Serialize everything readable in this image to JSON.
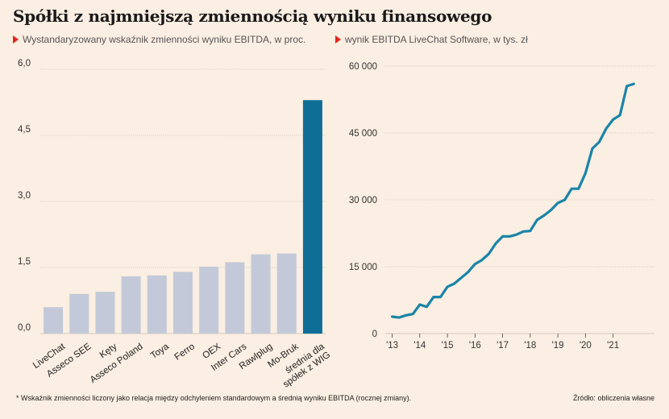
{
  "header": {
    "title": "Spółki z najmniejszą zmiennością wyniku finansowego"
  },
  "footnote": "* Wskaźnik zmienności liczony jako relacja między odchyleniem standardowym a średnią wyniku EBITDA (rocznej zmiany).",
  "source": "Źródło: obliczenia własne",
  "colors": {
    "background": "#fbeee2",
    "bar": "#c3c9d8",
    "highlight": "#0f6e96",
    "line": "#1a84a8",
    "marker": "#e2251b"
  },
  "chart_data": [
    {
      "type": "bar",
      "title": "Wystandaryzowany wskaźnik zmienności wyniku EBITDA, w proc.",
      "categories": [
        "LiveChat",
        "Asseco SEE",
        "Kęty",
        "Asseco Poland",
        "Toya",
        "Ferro",
        "OEX",
        "Inter Cars",
        "Rawlplug",
        "Mo-Bruk",
        "średnia dla spółek z WIG"
      ],
      "values": [
        0.6,
        0.9,
        0.95,
        1.3,
        1.32,
        1.4,
        1.52,
        1.62,
        1.8,
        1.82,
        5.3
      ],
      "highlight_index": 10,
      "ylim": [
        0,
        6
      ],
      "yticks": [
        "0,0",
        "1,5",
        "3,0",
        "4,5",
        "6,0"
      ],
      "ytick_values": [
        0,
        1.5,
        3,
        4.5,
        6
      ],
      "grid": true
    },
    {
      "type": "line",
      "title": "wynik EBITDA LiveChat Software, w tys. zł",
      "xticks": [
        "'13",
        "'14",
        "'15",
        "'16",
        "'17",
        "'18",
        "'19",
        "'20",
        "'21"
      ],
      "xtick_values": [
        2013,
        2014,
        2015,
        2016,
        2017,
        2018,
        2019,
        2020,
        2021
      ],
      "xlim": [
        2012.75,
        2022.5
      ],
      "ylim": [
        0,
        60000
      ],
      "yticks": [
        "0",
        "15 000",
        "30 000",
        "45 000",
        "60 000"
      ],
      "ytick_values": [
        0,
        15000,
        30000,
        45000,
        60000
      ],
      "grid": true,
      "series": [
        {
          "x": [
            2013.0,
            2013.25,
            2013.5,
            2013.75,
            2014.0,
            2014.25,
            2014.5,
            2014.75,
            2015.0,
            2015.25,
            2015.5,
            2015.75,
            2016.0,
            2016.25,
            2016.5,
            2016.75,
            2017.0,
            2017.25,
            2017.5,
            2017.75,
            2018.0,
            2018.25,
            2018.5,
            2018.75,
            2019.0,
            2019.25,
            2019.5,
            2019.75,
            2020.0,
            2020.25,
            2020.5,
            2020.75,
            2021.0,
            2021.25,
            2021.5,
            2021.75
          ],
          "values": [
            3800,
            3600,
            4100,
            4400,
            6500,
            6000,
            8200,
            8200,
            10500,
            11200,
            12500,
            13800,
            15600,
            16500,
            17900,
            20200,
            21800,
            21800,
            22200,
            22900,
            23000,
            25500,
            26500,
            27700,
            29300,
            30000,
            32500,
            32500,
            36000,
            41500,
            43000,
            46000,
            48000,
            49000,
            55500,
            56000
          ]
        }
      ]
    }
  ]
}
